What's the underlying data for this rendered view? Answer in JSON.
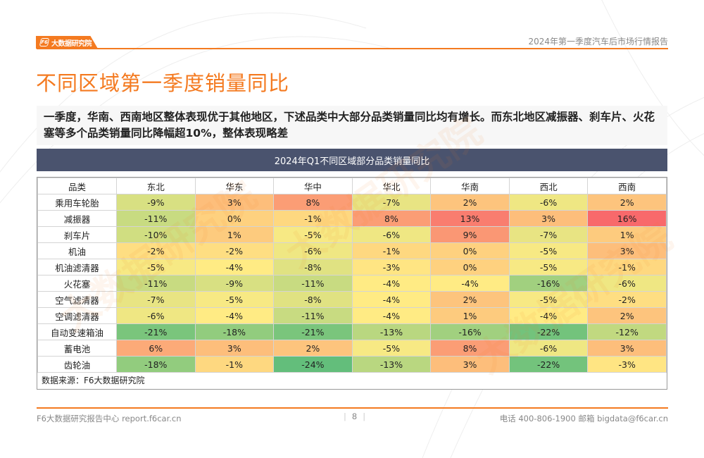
{
  "header": {
    "logo_text": "大数据研究院",
    "logo_icon": "f6-logo-icon",
    "report_title": "2024年第一季度汽车后市场行情报告"
  },
  "page_title": "不同区域第一季度销量同比",
  "summary": "一季度，华南、西南地区整体表现优于其他地区，下述品类中大部分品类销量同比均有增长。而东北地区减振器、刹车片、火花塞等多个品类销量同比降幅超10%，整体表现略差",
  "table_banner": "2024年Q1不同区域部分品类销量同比",
  "source_note": "数据来源：F6大数据研究院",
  "watermark_text": "大数据研究院",
  "colors": {
    "accent": "#f47a20",
    "banner": "#4a536e",
    "heat_min": "#63be7b",
    "heat_mid": "#ffeb84",
    "heat_max": "#f8696b"
  },
  "chart_data": {
    "type": "heatmap",
    "title": "2024年Q1不同区域部分品类销量同比",
    "row_header": "品类",
    "columns": [
      "东北",
      "华东",
      "华中",
      "华北",
      "华南",
      "西北",
      "西南"
    ],
    "rows": [
      "乘用车轮胎",
      "减振器",
      "刹车片",
      "机油",
      "机油滤清器",
      "火花塞",
      "空气滤清器",
      "空调滤清器",
      "自动变速箱油",
      "蓄电池",
      "齿轮油"
    ],
    "values": [
      [
        -9,
        3,
        8,
        -7,
        2,
        -6,
        2
      ],
      [
        -11,
        0,
        -1,
        8,
        13,
        3,
        16
      ],
      [
        -10,
        1,
        -5,
        -6,
        9,
        -7,
        1
      ],
      [
        -2,
        -2,
        -6,
        -1,
        0,
        -5,
        3
      ],
      [
        -5,
        -4,
        -8,
        -3,
        0,
        -5,
        -1
      ],
      [
        -11,
        -9,
        -11,
        -4,
        -4,
        -16,
        -6
      ],
      [
        -7,
        -5,
        -8,
        -4,
        2,
        -5,
        -2
      ],
      [
        -6,
        -4,
        -11,
        -4,
        1,
        -4,
        2
      ],
      [
        -21,
        -18,
        -21,
        -13,
        -16,
        -22,
        -12
      ],
      [
        6,
        3,
        2,
        -5,
        8,
        -6,
        3
      ],
      [
        -18,
        -1,
        -24,
        -13,
        3,
        -22,
        -3
      ]
    ],
    "unit": "%",
    "color_scale": {
      "min": -24,
      "mid": -4,
      "max": 16
    }
  },
  "footer": {
    "left": "F6大数据研究报告中心 report.f6car.cn",
    "page": "8",
    "right": "电话 400-806-1900  邮箱 bigdata@f6car.cn"
  }
}
